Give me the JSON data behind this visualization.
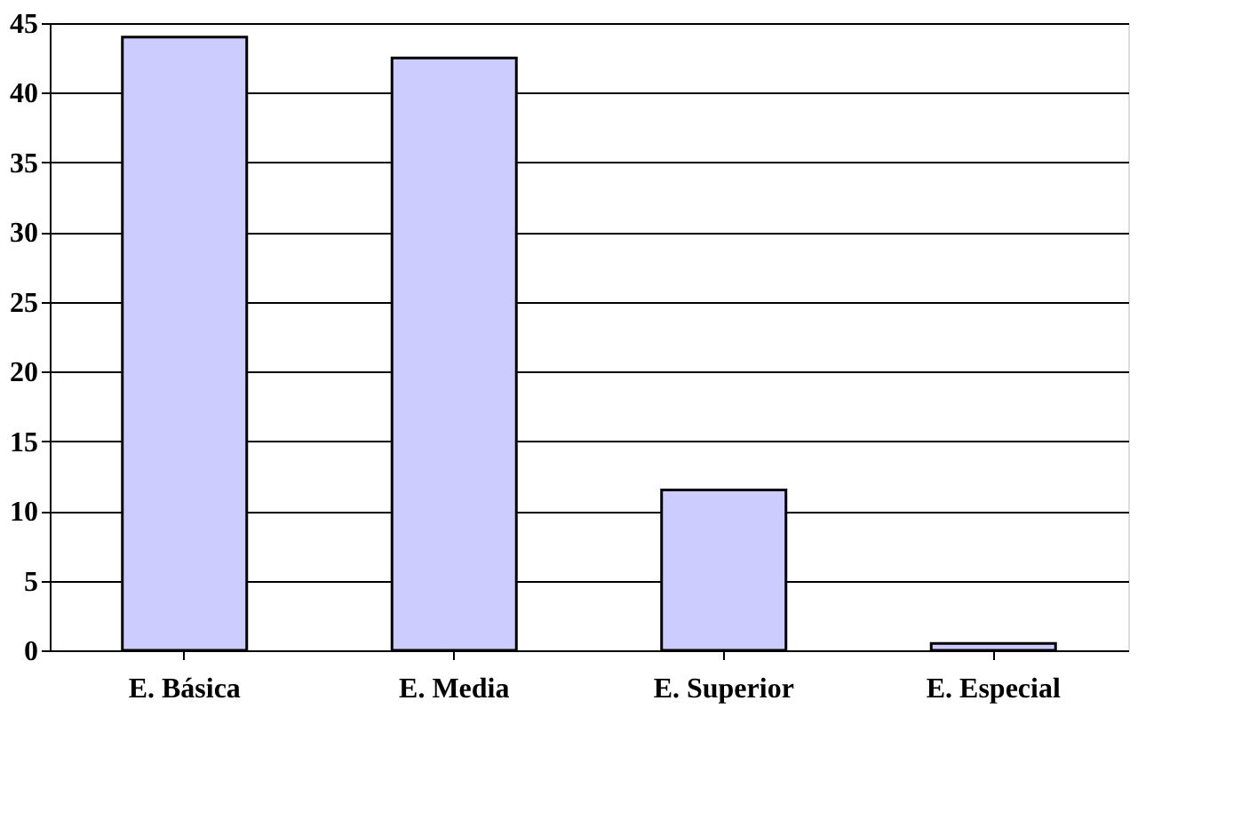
{
  "chart_data": {
    "type": "bar",
    "categories": [
      "E. Básica",
      "E. Media",
      "E. Superior",
      "E. Especial"
    ],
    "values": [
      44,
      42.5,
      11.5,
      0.5
    ],
    "color": "#ccccff",
    "ylim": [
      0,
      45
    ],
    "yticks": [
      0,
      5,
      10,
      15,
      20,
      25,
      30,
      35,
      40,
      45
    ],
    "grid": "y"
  }
}
